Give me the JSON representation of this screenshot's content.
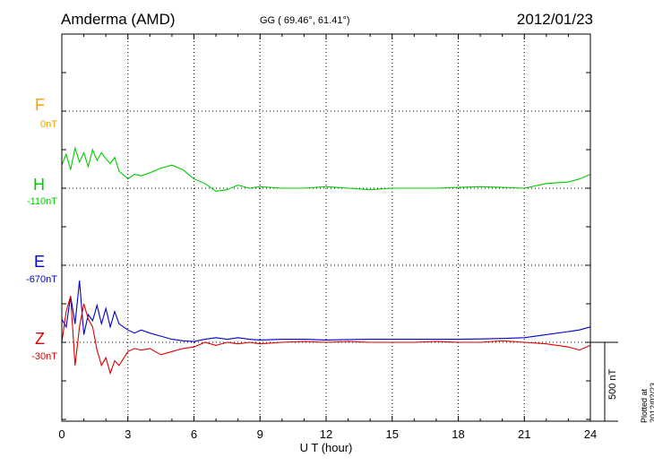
{
  "header": {
    "station": "Amderma (AMD)",
    "coords": "GG ( 69.46°,  61.41°)",
    "date": "2012/01/23"
  },
  "components": [
    {
      "name": "F",
      "baseline": "0nT",
      "color": "#f4a300"
    },
    {
      "name": "H",
      "baseline": "-110nT",
      "color": "#00cc00"
    },
    {
      "name": "E",
      "baseline": "-670nT",
      "color": "#0000cc"
    },
    {
      "name": "Z",
      "baseline": "-30nT",
      "color": "#dd0000"
    }
  ],
  "scale_bar": {
    "label": "500 nT"
  },
  "footer_note": "Plotted at 2012/02/23 01:01  UT",
  "chart_data": {
    "type": "line",
    "xlabel": "U T (hour)",
    "xlim": [
      0,
      24
    ],
    "x_ticks": [
      0,
      3,
      6,
      9,
      12,
      15,
      18,
      21,
      24
    ],
    "grid": true,
    "series": [
      {
        "name": "H",
        "color": "#00cc00",
        "x": [
          0,
          0.2,
          0.4,
          0.6,
          0.8,
          1.0,
          1.2,
          1.4,
          1.6,
          1.8,
          2.0,
          2.2,
          2.4,
          2.6,
          3.0,
          3.3,
          3.6,
          4.0,
          4.5,
          5.0,
          5.5,
          6.0,
          6.5,
          7.0,
          7.5,
          8.0,
          8.5,
          9.0,
          10,
          11,
          12,
          13,
          14,
          15,
          16,
          17,
          18,
          19,
          20,
          21,
          22,
          23,
          23.5,
          24
        ],
        "y": [
          -150,
          -220,
          -120,
          -260,
          -170,
          -230,
          -140,
          -250,
          -180,
          -230,
          -190,
          -160,
          -200,
          -110,
          -60,
          -90,
          -80,
          -100,
          -130,
          -150,
          -120,
          -60,
          -30,
          20,
          10,
          -20,
          0,
          -10,
          0,
          0,
          -10,
          0,
          10,
          0,
          0,
          0,
          -5,
          -10,
          -5,
          0,
          -30,
          -40,
          -60,
          -90
        ]
      },
      {
        "name": "E",
        "color": "#0000cc",
        "x": [
          0,
          0.2,
          0.4,
          0.6,
          0.8,
          1.0,
          1.2,
          1.4,
          1.6,
          1.8,
          2.0,
          2.2,
          2.4,
          2.6,
          3.0,
          3.3,
          3.6,
          4.0,
          4.5,
          5.0,
          5.5,
          6.0,
          6.5,
          7.0,
          7.5,
          8.0,
          8.5,
          9.0,
          10,
          11,
          12,
          13,
          14,
          15,
          16,
          17,
          18,
          19,
          20,
          21,
          22,
          23,
          23.5,
          24
        ],
        "y": [
          350,
          400,
          200,
          380,
          100,
          450,
          320,
          360,
          260,
          380,
          280,
          400,
          300,
          380,
          420,
          440,
          420,
          440,
          460,
          480,
          490,
          495,
          480,
          470,
          480,
          470,
          480,
          485,
          480,
          480,
          485,
          482,
          480,
          480,
          480,
          480,
          480,
          478,
          475,
          470,
          450,
          430,
          420,
          400
        ]
      },
      {
        "name": "Z",
        "color": "#dd0000",
        "x": [
          0,
          0.2,
          0.4,
          0.6,
          0.8,
          1.0,
          1.2,
          1.4,
          1.6,
          1.8,
          2.0,
          2.2,
          2.4,
          2.6,
          3.0,
          3.3,
          3.6,
          4.0,
          4.5,
          5.0,
          5.5,
          6.0,
          6.5,
          7.0,
          7.5,
          8.0,
          8.5,
          9.0,
          10,
          11,
          12,
          13,
          14,
          15,
          16,
          17,
          18,
          19,
          20,
          21,
          22,
          23,
          23.5,
          24
        ],
        "y": [
          0,
          -200,
          -300,
          150,
          -100,
          -250,
          -150,
          -100,
          50,
          150,
          100,
          200,
          120,
          150,
          60,
          40,
          50,
          40,
          80,
          60,
          40,
          30,
          0,
          20,
          0,
          10,
          0,
          10,
          0,
          -5,
          0,
          -5,
          0,
          0,
          0,
          -5,
          0,
          0,
          -10,
          0,
          10,
          30,
          50,
          20
        ]
      }
    ]
  }
}
